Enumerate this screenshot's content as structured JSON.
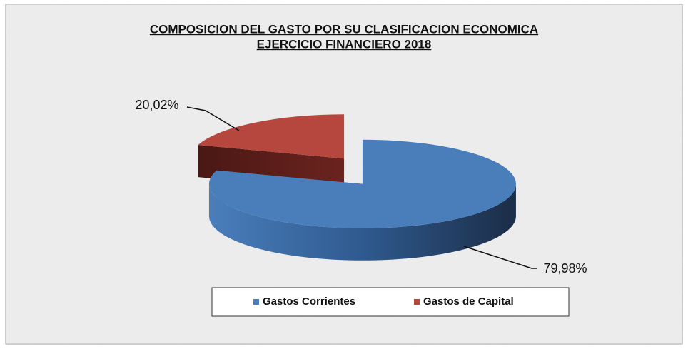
{
  "chart_data": {
    "type": "pie3d",
    "title": [
      "COMPOSICION DEL GASTO POR SU CLASIFICACION ECONOMICA",
      "EJERCICIO FINANCIERO 2018"
    ],
    "categories": [
      "Gastos Corrientes",
      "Gastos de Capital"
    ],
    "values": [
      79.98,
      20.02
    ],
    "value_labels": [
      "79,98%",
      "20,02%"
    ],
    "colors": [
      "#4a7ebb",
      "#b5473f"
    ],
    "legend": "bottom"
  }
}
